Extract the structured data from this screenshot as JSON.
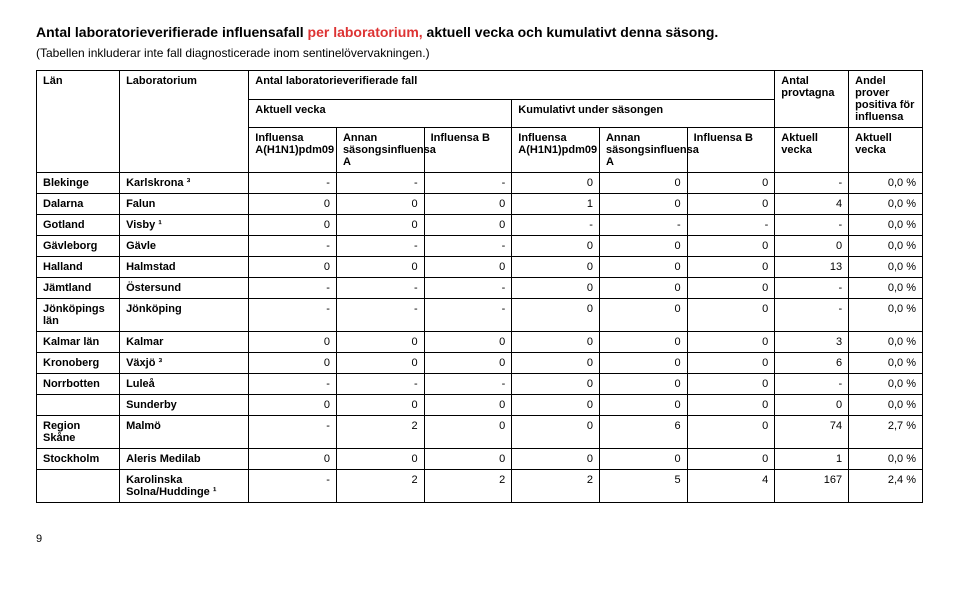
{
  "title_pre": "Antal laboratorieverifierade influensafall ",
  "title_red": "per laboratorium,",
  "title_post": " aktuell vecka och kumulativt denna säsong.",
  "subtitle": "(Tabellen inkluderar inte fall diagnosticerade inom sentinelövervakningen.)",
  "headers": {
    "lan": "Län",
    "laboratorium": "Laboratorium",
    "antal_fall": "Antal laboratorieverifierade fall",
    "antal_provtagna": "Antal provtagna",
    "andel": "Andel prover positiva för influensa",
    "aktuell_vecka": "Aktuell vecka",
    "kumulativ": "Kumulativt under säsongen",
    "a_h1n1": "Influensa A(H1N1)pdm09",
    "annan_a": "Annan säsongsinfluensa A",
    "inf_b": "Influensa B",
    "prov_aktuell": "Aktuell vecka",
    "andel_aktuell": "Aktuell vecka"
  },
  "rows": [
    {
      "lan": "Blekinge",
      "lab": "Karlskrona ³",
      "d": [
        "-",
        "-",
        "-",
        "0",
        "0",
        "0",
        "-",
        "0,0 %"
      ]
    },
    {
      "lan": "Dalarna",
      "lab": "Falun",
      "d": [
        "0",
        "0",
        "0",
        "1",
        "0",
        "0",
        "4",
        "0,0 %"
      ]
    },
    {
      "lan": "Gotland",
      "lab": "Visby ¹",
      "d": [
        "0",
        "0",
        "0",
        "-",
        "-",
        "-",
        "-",
        "0,0 %"
      ]
    },
    {
      "lan": "Gävleborg",
      "lab": "Gävle",
      "d": [
        "-",
        "-",
        "-",
        "0",
        "0",
        "0",
        "0",
        "0,0 %"
      ]
    },
    {
      "lan": "Halland",
      "lab": "Halmstad",
      "d": [
        "0",
        "0",
        "0",
        "0",
        "0",
        "0",
        "13",
        "0,0 %"
      ]
    },
    {
      "lan": "Jämtland",
      "lab": "Östersund",
      "d": [
        "-",
        "-",
        "-",
        "0",
        "0",
        "0",
        "-",
        "0,0 %"
      ]
    },
    {
      "lan": "Jönköpings län",
      "lab": "Jönköping",
      "d": [
        "-",
        "-",
        "-",
        "0",
        "0",
        "0",
        "-",
        "0,0 %"
      ]
    },
    {
      "lan": "Kalmar län",
      "lab": "Kalmar",
      "d": [
        "0",
        "0",
        "0",
        "0",
        "0",
        "0",
        "3",
        "0,0 %"
      ]
    },
    {
      "lan": "Kronoberg",
      "lab": "Växjö ³",
      "d": [
        "0",
        "0",
        "0",
        "0",
        "0",
        "0",
        "6",
        "0,0 %"
      ]
    },
    {
      "lan": "Norrbotten",
      "lab": "Luleå",
      "d": [
        "-",
        "-",
        "-",
        "0",
        "0",
        "0",
        "-",
        "0,0 %"
      ]
    },
    {
      "lan": "",
      "lab": "Sunderby",
      "d": [
        "0",
        "0",
        "0",
        "0",
        "0",
        "0",
        "0",
        "0,0 %"
      ]
    },
    {
      "lan": "Region Skåne",
      "lab": "Malmö",
      "d": [
        "-",
        "2",
        "0",
        "0",
        "6",
        "0",
        "74",
        "2,7 %"
      ]
    },
    {
      "lan": "Stockholm",
      "lab": "Aleris Medilab",
      "d": [
        "0",
        "0",
        "0",
        "0",
        "0",
        "0",
        "1",
        "0,0 %"
      ]
    },
    {
      "lan": "",
      "lab": "Karolinska Solna/Huddinge ¹",
      "d": [
        "-",
        "2",
        "2",
        "2",
        "5",
        "4",
        "167",
        "2,4 %"
      ]
    }
  ],
  "page_number": "9"
}
